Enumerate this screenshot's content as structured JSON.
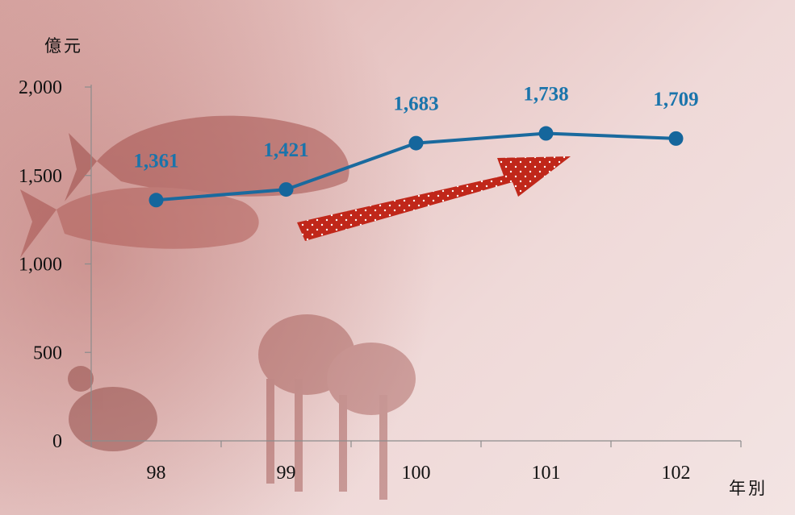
{
  "chart_data": {
    "type": "line",
    "categories": [
      "98",
      "99",
      "100",
      "101",
      "102"
    ],
    "values": [
      1361,
      1421,
      1683,
      1738,
      1709
    ],
    "data_labels": [
      "1,361",
      "1,421",
      "1,683",
      "1,738",
      "1,709"
    ],
    "y_ticks": [
      0,
      500,
      1000,
      1500,
      2000
    ],
    "y_tick_labels": [
      "0",
      "500",
      "1,000",
      "1,500",
      "2,000"
    ],
    "ylim": [
      0,
      2000
    ],
    "ylabel": "億元",
    "xlabel": "年別",
    "grid": false,
    "legend": "none",
    "trend_arrow": "upward",
    "colors": {
      "line": "#1a6a9e",
      "marker": "#15669c",
      "data_label": "#1a74ab",
      "arrow_fill": "#c0271a",
      "axis": "#8c8c8c"
    }
  }
}
